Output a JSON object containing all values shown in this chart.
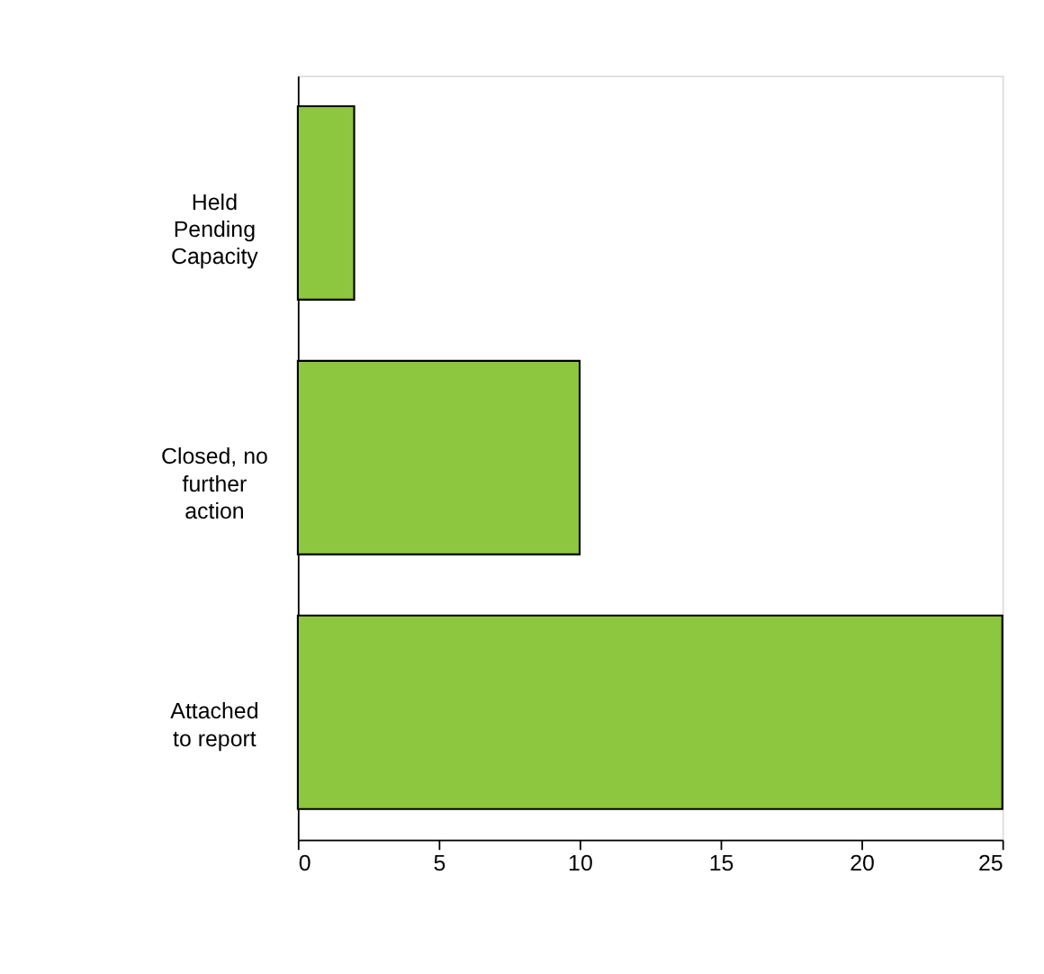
{
  "chart_data": {
    "type": "bar",
    "orientation": "horizontal",
    "categories": [
      "Held Pending Capacity",
      "Closed, no further action",
      "Attached to report"
    ],
    "values": [
      2,
      10,
      25
    ],
    "color": "#8dc63f",
    "xlim": [
      0,
      25
    ],
    "xticks": [
      0,
      5,
      10,
      15,
      20,
      25
    ],
    "grid": false
  }
}
